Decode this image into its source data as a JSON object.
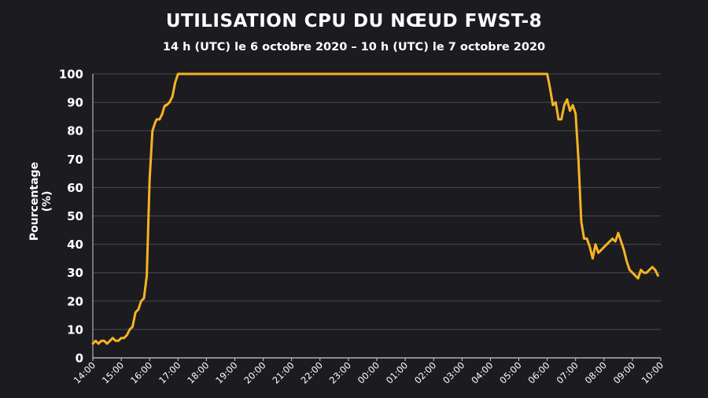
{
  "chart_data": {
    "type": "line",
    "title": "UTILISATION CPU DU NŒUD FWST-8",
    "subtitle": "14 h (UTC) le 6 octobre 2020 – 10 h (UTC) le 7 octobre 2020",
    "xlabel": "",
    "ylabel": "Pourcentage (%)",
    "ylim": [
      0,
      100
    ],
    "yticks": [
      0,
      10,
      20,
      30,
      40,
      50,
      60,
      70,
      80,
      90,
      100
    ],
    "xlim": [
      14,
      34
    ],
    "xtick_labels": [
      "14:00",
      "15:00",
      "16:00",
      "17:00",
      "18:00",
      "19:00",
      "20:00",
      "21:00",
      "22:00",
      "23:00",
      "00:00",
      "01:00",
      "02:00",
      "03:00",
      "04:00",
      "05:00",
      "06:00",
      "07:00",
      "08:00",
      "09:00",
      "10:00"
    ],
    "grid": true,
    "color": "#f5b324",
    "series": [
      {
        "x": [
          14.0,
          14.1,
          14.2,
          14.3,
          14.4,
          14.5,
          14.6,
          14.7,
          14.8,
          14.9,
          15.0,
          15.1,
          15.2,
          15.3,
          15.4,
          15.5,
          15.6,
          15.7,
          15.8,
          15.9,
          16.0,
          16.1,
          16.2,
          16.25,
          16.3,
          16.35,
          16.4,
          16.45,
          16.5,
          16.55,
          16.6,
          16.7,
          16.8,
          16.9,
          17.0,
          17.1,
          17.2,
          17.3,
          17.4,
          17.5,
          17.6,
          18.0,
          19.0,
          20.0,
          21.0,
          22.0,
          23.0,
          24.0,
          25.0,
          26.0,
          27.0,
          28.0,
          29.0,
          30.0,
          30.1,
          30.2,
          30.3,
          30.4,
          30.5,
          30.6,
          30.7,
          30.8,
          30.9,
          31.0,
          31.1,
          31.2,
          31.3,
          31.4,
          31.5,
          31.6,
          31.7,
          31.8,
          31.9,
          32.0,
          32.1,
          32.2,
          32.3,
          32.4,
          32.5,
          32.6,
          32.7,
          32.8,
          32.9,
          33.0,
          33.1,
          33.2,
          33.3,
          33.4,
          33.5,
          33.6,
          33.7,
          33.8,
          33.9
        ],
        "y": [
          5,
          6,
          5,
          6,
          6,
          5,
          6,
          7,
          6,
          6,
          7,
          7,
          8,
          10,
          11,
          16,
          17,
          20,
          21,
          29,
          63,
          80,
          83,
          84,
          84,
          84,
          85,
          86,
          88,
          89,
          89,
          90,
          92,
          97,
          100,
          100,
          100,
          100,
          100,
          100,
          100,
          100,
          100,
          100,
          100,
          100,
          100,
          100,
          100,
          100,
          100,
          100,
          100,
          100,
          95,
          89,
          90,
          84,
          84,
          89,
          91,
          87,
          89,
          86,
          70,
          48,
          42,
          42,
          39,
          35,
          40,
          37,
          38,
          39,
          40,
          41,
          42,
          41,
          44,
          41,
          38,
          34,
          31,
          30,
          29,
          28,
          31,
          30,
          30,
          31,
          32,
          31,
          29
        ]
      }
    ]
  }
}
